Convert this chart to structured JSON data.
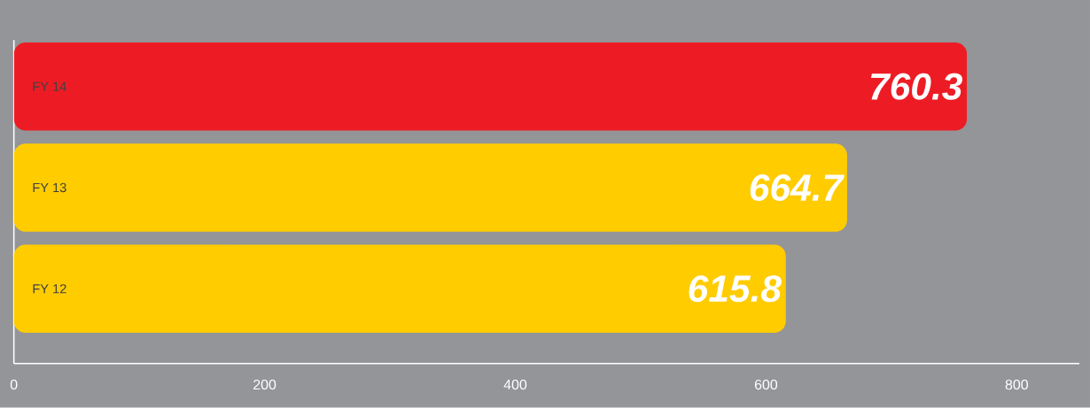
{
  "chart_data": {
    "type": "bar",
    "orientation": "horizontal",
    "categories": [
      "FY 14",
      "FY 13",
      "FY 12"
    ],
    "values": [
      760.3,
      664.7,
      615.8
    ],
    "colors": [
      "#ed1c24",
      "#ffcc00",
      "#ffcc00"
    ],
    "xlim": [
      0,
      850
    ],
    "xticks": [
      0,
      200,
      400,
      600,
      800
    ],
    "data_labels": true
  }
}
